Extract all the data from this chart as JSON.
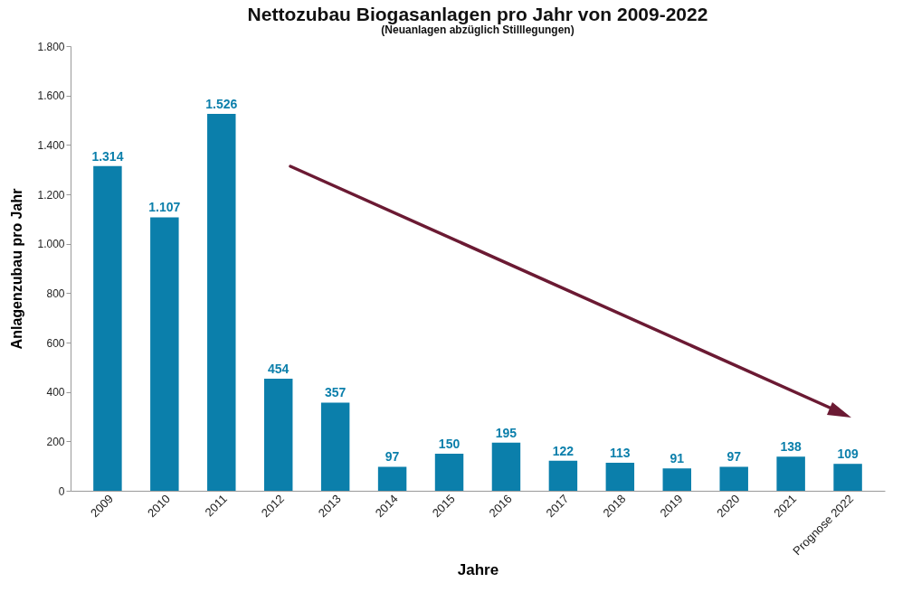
{
  "chart_data": {
    "type": "bar",
    "title": "Nettozubau Biogasanlagen pro Jahr von 2009-2022",
    "subtitle": "(Neuanlagen abzüglich Stilllegungen)",
    "xlabel": "Jahre",
    "ylabel": "Anlagenzubau pro Jahr",
    "categories": [
      "2009",
      "2010",
      "2011",
      "2012",
      "2013",
      "2014",
      "2015",
      "2016",
      "2017",
      "2018",
      "2019",
      "2020",
      "2021",
      "Prognose 2022"
    ],
    "values": [
      1314,
      1107,
      1526,
      454,
      357,
      97,
      150,
      195,
      122,
      113,
      91,
      97,
      138,
      109
    ],
    "value_labels": [
      "1.314",
      "1.107",
      "1.526",
      "454",
      "357",
      "97",
      "150",
      "195",
      "122",
      "113",
      "91",
      "97",
      "138",
      "109"
    ],
    "color": "#0b7fab",
    "ylim": [
      0,
      1800
    ],
    "yticks": [
      0,
      200,
      400,
      600,
      800,
      {
        "value": 1000,
        "label": "1.000"
      },
      {
        "value": 1200,
        "label": "1.200"
      },
      {
        "value": 1400,
        "label": "1.400"
      },
      {
        "value": 1600,
        "label": "1.600"
      },
      {
        "value": 1800,
        "label": "1.800"
      }
    ],
    "grid": false
  }
}
